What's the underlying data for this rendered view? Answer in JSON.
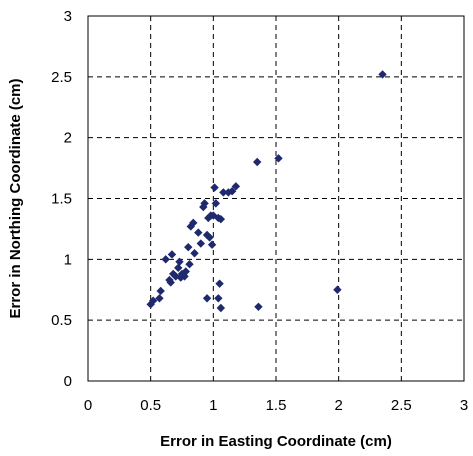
{
  "chart_data": {
    "type": "scatter",
    "title": "",
    "xlabel": "Error in Easting Coordinate (cm)",
    "ylabel": "Error in Northing  Coordinate (cm)",
    "xlim": [
      0,
      3
    ],
    "ylim": [
      0,
      3
    ],
    "xticks": [
      "0",
      "0.5",
      "1",
      "1.5",
      "2",
      "2.5",
      "3"
    ],
    "yticks": [
      "0",
      "0.5",
      "1",
      "1.5",
      "2",
      "2.5",
      "3"
    ],
    "grid": true,
    "legend": "none",
    "marker_color": "#1f2a6e",
    "series": [
      {
        "points": [
          [
            0.5,
            0.63
          ],
          [
            0.52,
            0.66
          ],
          [
            0.57,
            0.68
          ],
          [
            0.58,
            0.74
          ],
          [
            0.62,
            1.0
          ],
          [
            0.65,
            0.83
          ],
          [
            0.66,
            0.81
          ],
          [
            0.67,
            1.04
          ],
          [
            0.68,
            0.88
          ],
          [
            0.7,
            0.86
          ],
          [
            0.72,
            0.93
          ],
          [
            0.73,
            0.98
          ],
          [
            0.74,
            0.85
          ],
          [
            0.75,
            0.88
          ],
          [
            0.77,
            0.86
          ],
          [
            0.78,
            0.9
          ],
          [
            0.8,
            1.1
          ],
          [
            0.81,
            0.96
          ],
          [
            0.82,
            1.27
          ],
          [
            0.84,
            1.3
          ],
          [
            0.85,
            1.05
          ],
          [
            0.88,
            1.22
          ],
          [
            0.9,
            1.13
          ],
          [
            0.92,
            1.43
          ],
          [
            0.93,
            1.46
          ],
          [
            0.95,
            1.2
          ],
          [
            0.96,
            1.34
          ],
          [
            0.97,
            1.18
          ],
          [
            0.98,
            1.36
          ],
          [
            0.99,
            1.12
          ],
          [
            1.0,
            1.36
          ],
          [
            1.01,
            1.59
          ],
          [
            1.02,
            1.46
          ],
          [
            1.04,
            1.34
          ],
          [
            1.06,
            1.33
          ],
          [
            1.08,
            1.55
          ],
          [
            1.12,
            1.55
          ],
          [
            1.15,
            1.56
          ],
          [
            1.18,
            1.6
          ],
          [
            1.35,
            1.8
          ],
          [
            1.52,
            1.83
          ],
          [
            0.95,
            0.68
          ],
          [
            1.04,
            0.68
          ],
          [
            1.05,
            0.8
          ],
          [
            1.06,
            0.6
          ],
          [
            1.36,
            0.61
          ],
          [
            1.99,
            0.75
          ],
          [
            2.35,
            2.52
          ]
        ]
      }
    ]
  }
}
